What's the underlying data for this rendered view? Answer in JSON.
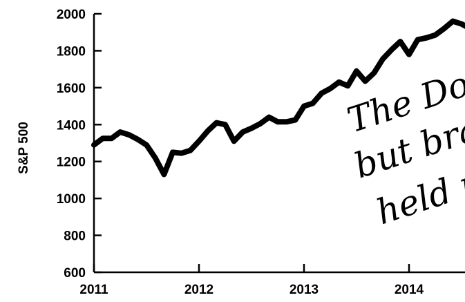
{
  "chart_data": {
    "type": "line",
    "title": "",
    "xlabel": "",
    "ylabel": "S&P 500",
    "ylim": [
      600,
      2000
    ],
    "xlim": [
      2011.0,
      2014.55
    ],
    "y_ticks": [
      600,
      800,
      1000,
      1200,
      1400,
      1600,
      1800,
      2000
    ],
    "x_ticks": [
      2011,
      2012,
      2013,
      2014
    ],
    "grid": false,
    "series": [
      {
        "x": [
          2011.0,
          2011.083,
          2011.167,
          2011.25,
          2011.333,
          2011.417,
          2011.5,
          2011.583,
          2011.667,
          2011.75,
          2011.833,
          2011.917,
          2012.0,
          2012.083,
          2012.167,
          2012.25,
          2012.333,
          2012.417,
          2012.5,
          2012.583,
          2012.667,
          2012.75,
          2012.833,
          2012.917,
          2013.0,
          2013.083,
          2013.167,
          2013.25,
          2013.333,
          2013.417,
          2013.5,
          2013.583,
          2013.667,
          2013.75,
          2013.833,
          2013.917,
          2014.0,
          2014.083,
          2014.167,
          2014.25,
          2014.333,
          2014.417,
          2014.5,
          2014.55
        ],
        "y": [
          1290,
          1325,
          1325,
          1360,
          1345,
          1320,
          1290,
          1220,
          1130,
          1250,
          1245,
          1260,
          1310,
          1365,
          1410,
          1400,
          1310,
          1360,
          1380,
          1405,
          1440,
          1415,
          1415,
          1425,
          1500,
          1515,
          1570,
          1595,
          1630,
          1610,
          1690,
          1635,
          1680,
          1755,
          1805,
          1850,
          1780,
          1860,
          1870,
          1885,
          1920,
          1960,
          1945,
          1930
        ]
      }
    ]
  },
  "annotation": {
    "lines": [
      "The Dow",
      "but bra",
      "held u"
    ]
  }
}
